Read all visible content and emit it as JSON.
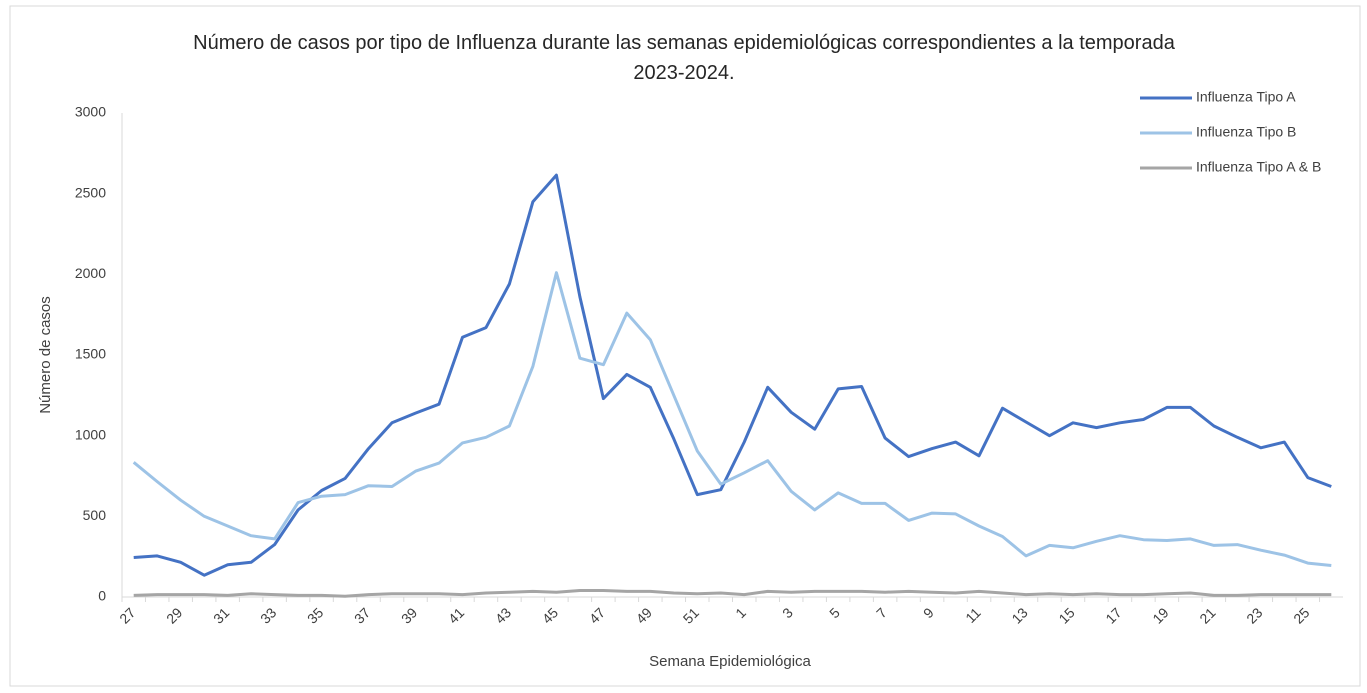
{
  "chart_data": {
    "type": "line",
    "title": "Número de casos por tipo de Influenza durante las semanas epidemiológicas correspondientes a la temporada 2023-2024.",
    "xlabel": "Semana Epidemiológica",
    "ylabel": "Número de casos",
    "categories": [
      "27",
      null,
      "29",
      null,
      "31",
      null,
      "33",
      null,
      "35",
      null,
      "37",
      null,
      "39",
      null,
      "41",
      null,
      "43",
      null,
      "45",
      null,
      "47",
      null,
      "49",
      null,
      "51",
      null,
      "1",
      null,
      "3",
      null,
      "5",
      null,
      "7",
      null,
      "9",
      null,
      "11",
      null,
      "13",
      null,
      "15",
      null,
      "17",
      null,
      "19",
      null,
      "21",
      null,
      "23",
      null,
      "25",
      null
    ],
    "series": [
      {
        "name": "Influenza Tipo A",
        "color": "#4472c4",
        "values": [
          245,
          255,
          215,
          135,
          200,
          215,
          325,
          540,
          660,
          735,
          920,
          1080,
          1140,
          1195,
          1610,
          1670,
          1940,
          2450,
          2615,
          1860,
          1230,
          1380,
          1300,
          980,
          635,
          665,
          960,
          1300,
          1145,
          1040,
          1290,
          1305,
          985,
          870,
          920,
          960,
          875,
          1170,
          1085,
          1000,
          1080,
          1050,
          1080,
          1100,
          1175,
          1175,
          1060,
          990,
          925,
          960,
          740,
          685
        ]
      },
      {
        "name": "Influenza Tipo B",
        "color": "#9dc3e6",
        "values": [
          835,
          715,
          600,
          500,
          440,
          380,
          360,
          585,
          625,
          635,
          690,
          685,
          780,
          830,
          955,
          990,
          1060,
          1430,
          2010,
          1480,
          1440,
          1760,
          1595,
          1250,
          905,
          700,
          770,
          845,
          655,
          540,
          645,
          580,
          580,
          475,
          520,
          515,
          440,
          375,
          255,
          320,
          305,
          345,
          380,
          355,
          350,
          360,
          320,
          325,
          290,
          260,
          210,
          195
        ]
      },
      {
        "name": "Influenza Tipo A & B",
        "color": "#a5a5a5",
        "values": [
          10,
          15,
          15,
          15,
          10,
          20,
          15,
          10,
          10,
          5,
          15,
          20,
          20,
          20,
          15,
          25,
          30,
          35,
          30,
          40,
          40,
          35,
          35,
          25,
          20,
          25,
          15,
          35,
          30,
          35,
          35,
          35,
          30,
          35,
          30,
          25,
          35,
          25,
          15,
          20,
          15,
          20,
          15,
          15,
          20,
          25,
          10,
          10,
          15,
          15,
          15,
          15
        ]
      }
    ],
    "ylim": [
      0,
      3000
    ],
    "yticks": [
      0,
      500,
      1000,
      1500,
      2000,
      2500,
      3000
    ],
    "grid": false,
    "legend": "top-right"
  }
}
